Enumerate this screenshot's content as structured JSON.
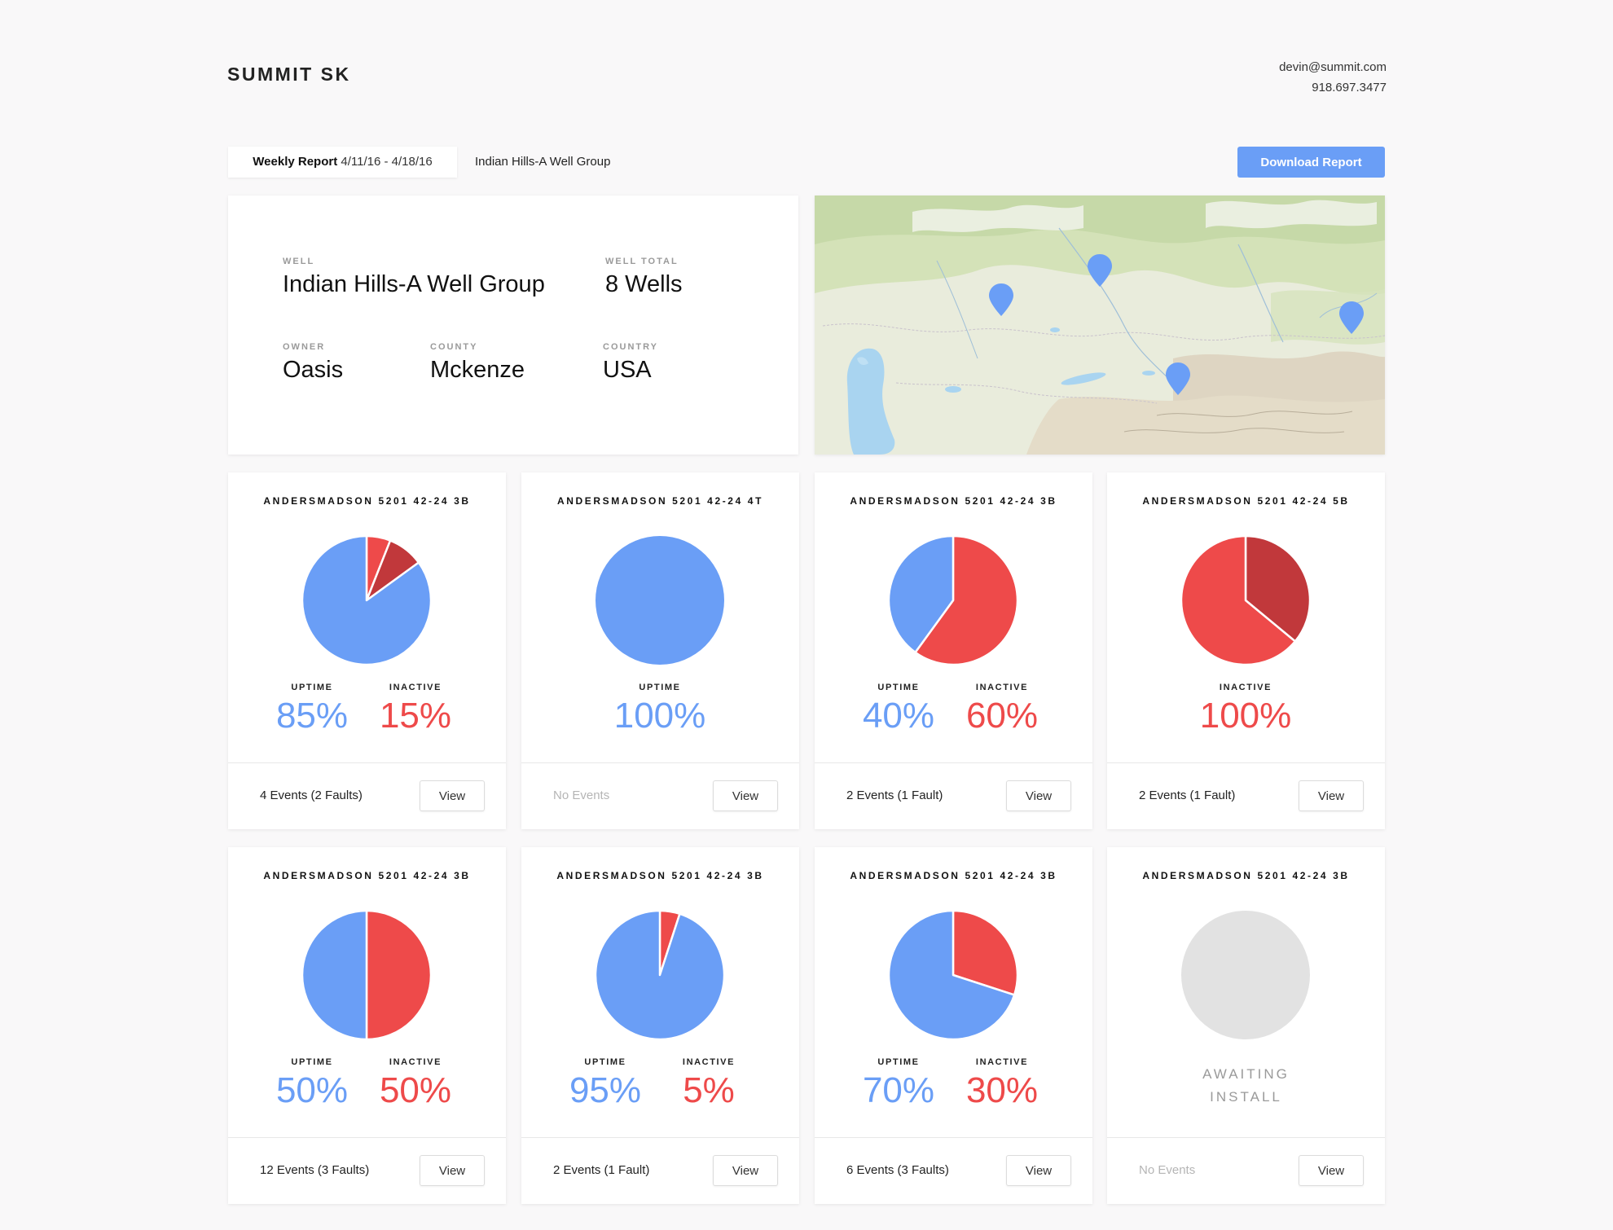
{
  "header": {
    "brand": "SUMMIT SK",
    "email": "devin@summit.com",
    "phone": "918.697.3477"
  },
  "toolbar": {
    "report_label": "Weekly Report",
    "report_range": "4/11/16 - 4/18/16",
    "group_tab": "Indian Hills-A Well Group",
    "download_label": "Download Report"
  },
  "info": {
    "well_label": "WELL",
    "well_value": "Indian Hills-A Well Group",
    "total_label": "WELL TOTAL",
    "total_value": "8 Wells",
    "owner_label": "OWNER",
    "owner_value": "Oasis",
    "county_label": "COUNTY",
    "county_value": "Mckenze",
    "country_label": "COUNTRY",
    "country_value": "USA"
  },
  "colors": {
    "uptime": "#6a9ef6",
    "inactive": "#ee4a4a",
    "fault": "#c1383b",
    "awaiting": "#e2e2e2"
  },
  "labels": {
    "uptime": "UPTIME",
    "inactive": "INACTIVE",
    "view": "View"
  },
  "wells": [
    {
      "title": "ANDERSMADSON 5201 42-24 3B",
      "uptime_pct": 85,
      "slices": [
        {
          "kind": "inactive",
          "value": 6
        },
        {
          "kind": "fault",
          "value": 9
        },
        {
          "kind": "uptime",
          "value": 85
        }
      ],
      "uptime": "85%",
      "inactive": "15%",
      "events": "4 Events (2 Faults)"
    },
    {
      "title": "ANDERSMADSON 5201 42-24 4T",
      "slices": [
        {
          "kind": "uptime",
          "value": 100
        }
      ],
      "uptime": "100%",
      "inactive": null,
      "events": "No Events"
    },
    {
      "title": "ANDERSMADSON 5201 42-24 3B",
      "slices": [
        {
          "kind": "inactive",
          "value": 60
        },
        {
          "kind": "uptime",
          "value": 40
        }
      ],
      "uptime": "40%",
      "inactive": "60%",
      "events": "2 Events (1 Fault)"
    },
    {
      "title": "ANDERSMADSON 5201 42-24 5B",
      "slices": [
        {
          "kind": "fault",
          "value": 36
        },
        {
          "kind": "inactive",
          "value": 64
        }
      ],
      "uptime": null,
      "inactive": "100%",
      "events": "2 Events (1 Fault)"
    },
    {
      "title": "ANDERSMADSON 5201 42-24 3B",
      "slices": [
        {
          "kind": "inactive",
          "value": 50
        },
        {
          "kind": "uptime",
          "value": 50
        }
      ],
      "uptime": "50%",
      "inactive": "50%",
      "events": "12 Events (3 Faults)"
    },
    {
      "title": "ANDERSMADSON 5201 42-24 3B",
      "slices": [
        {
          "kind": "inactive",
          "value": 5
        },
        {
          "kind": "uptime",
          "value": 95
        }
      ],
      "uptime": "95%",
      "inactive": "5%",
      "events": "2 Events (1 Fault)"
    },
    {
      "title": "ANDERSMADSON 5201 42-24 3B",
      "slices": [
        {
          "kind": "inactive",
          "value": 30
        },
        {
          "kind": "uptime",
          "value": 70
        }
      ],
      "uptime": "70%",
      "inactive": "30%",
      "events": "6 Events (3 Faults)"
    },
    {
      "title": "ANDERSMADSON 5201 42-24 3B",
      "slices": [
        {
          "kind": "awaiting",
          "value": 100
        }
      ],
      "uptime": null,
      "inactive": null,
      "awaiting": [
        "AWAITING",
        "INSTALL"
      ],
      "events": "No Events"
    }
  ],
  "map": {
    "marker_icon": "map-pin-icon"
  }
}
